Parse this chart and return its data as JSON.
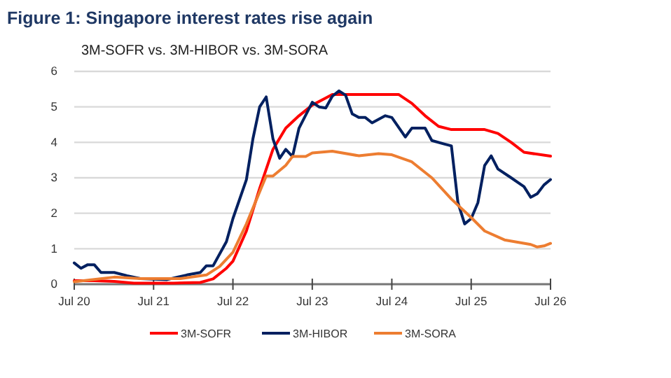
{
  "chart_data": {
    "type": "line",
    "title": "Figure 1: Singapore interest rates rise again",
    "subtitle": "3M-SOFR vs. 3M-HIBOR vs. 3M-SORA",
    "xlim": [
      "2020-07",
      "2026-07"
    ],
    "xticks": [
      {
        "value": "2020-07",
        "label": "Jul 20"
      },
      {
        "value": "2021-07",
        "label": "Jul 21"
      },
      {
        "value": "2022-07",
        "label": "Jul 22"
      },
      {
        "value": "2023-07",
        "label": "Jul 23"
      },
      {
        "value": "2024-07",
        "label": "Jul 24"
      },
      {
        "value": "2025-07",
        "label": "Jul 25"
      },
      {
        "value": "2026-07",
        "label": "Jul 26"
      }
    ],
    "ylim": [
      0,
      6
    ],
    "yticks": [
      0,
      1,
      2,
      3,
      4,
      5,
      6
    ],
    "grid": "y",
    "legend": "bottom",
    "marker": "none",
    "line_style": "solid",
    "series": [
      {
        "name": "3M-SOFR",
        "color": "#ff0000",
        "x": [
          "2020-07",
          "2020-10",
          "2021-01",
          "2021-04",
          "2021-10",
          "2022-02",
          "2022-04",
          "2022-06",
          "2022-07",
          "2022-09",
          "2022-11",
          "2023-01",
          "2023-03",
          "2023-05",
          "2023-07",
          "2023-09",
          "2023-10",
          "2024-08",
          "2024-10",
          "2024-12",
          "2025-02",
          "2025-04",
          "2025-09",
          "2025-11",
          "2026-01",
          "2026-03",
          "2026-07"
        ],
        "values": [
          0.1,
          0.1,
          0.08,
          0.03,
          0.03,
          0.05,
          0.15,
          0.45,
          0.65,
          1.5,
          2.7,
          3.8,
          4.4,
          4.75,
          5.05,
          5.25,
          5.35,
          5.35,
          5.1,
          4.75,
          4.45,
          4.36,
          4.36,
          4.25,
          4.0,
          3.72,
          3.61
        ]
      },
      {
        "name": "3M-HIBOR",
        "color": "#002060",
        "x": [
          "2020-07",
          "2020-08",
          "2020-09",
          "2020-10",
          "2020-11",
          "2021-01",
          "2021-03",
          "2021-05",
          "2021-09",
          "2021-12",
          "2022-02",
          "2022-03",
          "2022-04",
          "2022-06",
          "2022-07",
          "2022-09",
          "2022-10",
          "2022-11",
          "2022-12",
          "2023-01",
          "2023-02",
          "2023-03",
          "2023-04",
          "2023-05",
          "2023-07",
          "2023-08",
          "2023-09",
          "2023-10",
          "2023-11",
          "2023-12",
          "2024-01",
          "2024-02",
          "2024-03",
          "2024-04",
          "2024-06",
          "2024-07",
          "2024-09",
          "2024-10",
          "2024-12",
          "2025-01",
          "2025-03",
          "2025-04",
          "2025-05",
          "2025-06",
          "2025-07",
          "2025-08",
          "2025-09",
          "2025-10",
          "2025-11",
          "2026-01",
          "2026-03",
          "2026-04",
          "2026-05",
          "2026-06",
          "2026-07"
        ],
        "values": [
          0.6,
          0.45,
          0.55,
          0.55,
          0.33,
          0.33,
          0.24,
          0.16,
          0.13,
          0.26,
          0.33,
          0.52,
          0.52,
          1.2,
          1.85,
          2.95,
          4.1,
          5.0,
          5.28,
          4.1,
          3.55,
          3.8,
          3.6,
          4.4,
          5.13,
          5.0,
          4.97,
          5.3,
          5.45,
          5.33,
          4.8,
          4.7,
          4.7,
          4.55,
          4.75,
          4.7,
          4.15,
          4.4,
          4.4,
          4.05,
          3.95,
          3.9,
          2.3,
          1.7,
          1.85,
          2.3,
          3.35,
          3.62,
          3.25,
          3.0,
          2.75,
          2.45,
          2.55,
          2.8,
          2.95
        ]
      },
      {
        "name": "3M-SORA",
        "color": "#ed7d31",
        "x": [
          "2020-07",
          "2021-01",
          "2021-05",
          "2021-11",
          "2022-03",
          "2022-05",
          "2022-07",
          "2022-09",
          "2022-12",
          "2023-01",
          "2023-03",
          "2023-04",
          "2023-06",
          "2023-07",
          "2023-10",
          "2024-02",
          "2024-05",
          "2024-07",
          "2024-10",
          "2025-01",
          "2025-04",
          "2025-07",
          "2025-09",
          "2025-12",
          "2026-04",
          "2026-05",
          "2026-06",
          "2026-07"
        ],
        "values": [
          0.07,
          0.2,
          0.16,
          0.16,
          0.26,
          0.5,
          0.9,
          1.7,
          3.05,
          3.05,
          3.35,
          3.6,
          3.6,
          3.7,
          3.75,
          3.62,
          3.68,
          3.65,
          3.45,
          3.0,
          2.4,
          1.88,
          1.5,
          1.25,
          1.12,
          1.05,
          1.08,
          1.15
        ]
      }
    ]
  }
}
